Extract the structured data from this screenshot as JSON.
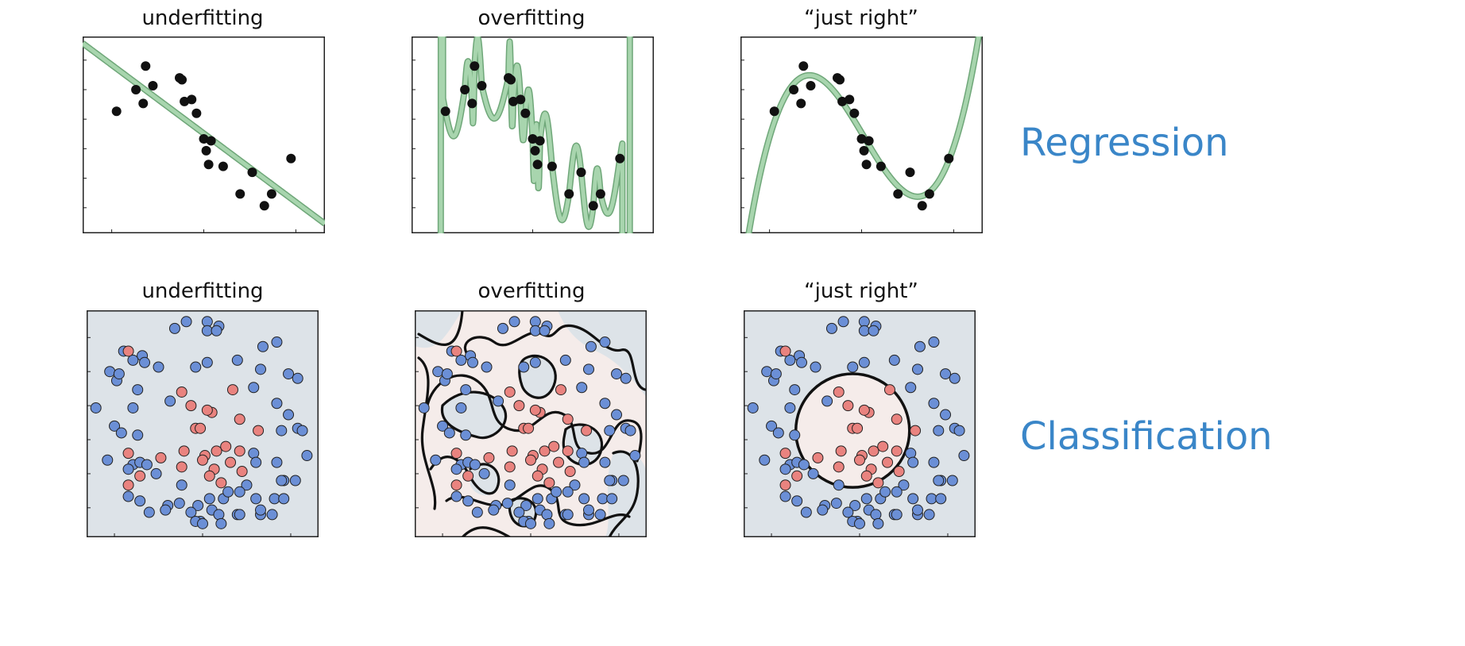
{
  "row_labels": {
    "regression": "Regression",
    "classification": "Classification"
  },
  "colors": {
    "row_label": "#3a86c8",
    "fit_line_fill": "#a8d5ae",
    "fit_line_edge": "#6fa779",
    "point_black": "#111111",
    "class_outer": "#6b8fd6",
    "class_inner": "#e9837f",
    "bg_outer_region": "#dde3e8",
    "bg_inner_region": "#f5ecea",
    "boundary": "#111111"
  },
  "chart_data": [
    {
      "type": "scatter",
      "panel": "regression-underfitting",
      "title": "underfitting",
      "fit": "linear",
      "xlim": [
        0,
        1
      ],
      "ylim": [
        0,
        1
      ],
      "x": [
        0.14,
        0.22,
        0.25,
        0.26,
        0.29,
        0.4,
        0.41,
        0.42,
        0.45,
        0.47,
        0.5,
        0.51,
        0.52,
        0.53,
        0.58,
        0.65,
        0.7,
        0.75,
        0.78,
        0.86
      ],
      "y": [
        0.62,
        0.73,
        0.66,
        0.85,
        0.75,
        0.79,
        0.78,
        0.67,
        0.68,
        0.61,
        0.48,
        0.42,
        0.35,
        0.47,
        0.34,
        0.2,
        0.31,
        0.14,
        0.2,
        0.38
      ]
    },
    {
      "type": "scatter",
      "panel": "regression-overfitting",
      "title": "overfitting",
      "fit": "interpolating polynomial",
      "xlim": [
        0,
        1
      ],
      "ylim": [
        0,
        1
      ],
      "x": [
        0.14,
        0.22,
        0.25,
        0.26,
        0.29,
        0.4,
        0.41,
        0.42,
        0.45,
        0.47,
        0.5,
        0.51,
        0.52,
        0.53,
        0.58,
        0.65,
        0.7,
        0.75,
        0.78,
        0.86
      ],
      "y": [
        0.62,
        0.73,
        0.66,
        0.85,
        0.75,
        0.79,
        0.78,
        0.67,
        0.68,
        0.61,
        0.48,
        0.42,
        0.35,
        0.47,
        0.34,
        0.2,
        0.31,
        0.14,
        0.2,
        0.38
      ]
    },
    {
      "type": "scatter",
      "panel": "regression-just-right",
      "title": "“just right”",
      "fit": "cubic",
      "xlim": [
        0,
        1
      ],
      "ylim": [
        0,
        1
      ],
      "x": [
        0.14,
        0.22,
        0.25,
        0.26,
        0.29,
        0.4,
        0.41,
        0.42,
        0.45,
        0.47,
        0.5,
        0.51,
        0.52,
        0.53,
        0.58,
        0.65,
        0.7,
        0.75,
        0.78,
        0.86
      ],
      "y": [
        0.62,
        0.73,
        0.66,
        0.85,
        0.75,
        0.79,
        0.78,
        0.67,
        0.68,
        0.61,
        0.48,
        0.42,
        0.35,
        0.47,
        0.34,
        0.2,
        0.31,
        0.14,
        0.2,
        0.38
      ]
    },
    {
      "type": "scatter",
      "panel": "classification-underfitting",
      "title": "underfitting",
      "boundary": "none",
      "xlim": [
        0,
        1
      ],
      "ylim": [
        0,
        1
      ]
    },
    {
      "type": "scatter",
      "panel": "classification-overfitting",
      "title": "overfitting",
      "boundary": "wiggly",
      "xlim": [
        0,
        1
      ],
      "ylim": [
        0,
        1
      ]
    },
    {
      "type": "scatter",
      "panel": "classification-just-right",
      "title": "“just right”",
      "boundary": "circle",
      "xlim": [
        0,
        1
      ],
      "ylim": [
        0,
        1
      ]
    }
  ],
  "class_points": {
    "outer": [
      [
        0.38,
        0.92
      ],
      [
        0.43,
        0.95
      ],
      [
        0.52,
        0.95
      ],
      [
        0.57,
        0.93
      ],
      [
        0.52,
        0.91
      ],
      [
        0.56,
        0.91
      ],
      [
        0.76,
        0.84
      ],
      [
        0.82,
        0.86
      ],
      [
        0.24,
        0.8
      ],
      [
        0.25,
        0.77
      ],
      [
        0.31,
        0.75
      ],
      [
        0.47,
        0.75
      ],
      [
        0.52,
        0.77
      ],
      [
        0.65,
        0.78
      ],
      [
        0.16,
        0.82
      ],
      [
        0.2,
        0.78
      ],
      [
        0.1,
        0.73
      ],
      [
        0.13,
        0.69
      ],
      [
        0.14,
        0.72
      ],
      [
        0.22,
        0.65
      ],
      [
        0.36,
        0.6
      ],
      [
        0.72,
        0.66
      ],
      [
        0.75,
        0.74
      ],
      [
        0.87,
        0.72
      ],
      [
        0.91,
        0.7
      ],
      [
        0.04,
        0.57
      ],
      [
        0.2,
        0.57
      ],
      [
        0.82,
        0.59
      ],
      [
        0.87,
        0.54
      ],
      [
        0.12,
        0.49
      ],
      [
        0.15,
        0.46
      ],
      [
        0.22,
        0.45
      ],
      [
        0.84,
        0.47
      ],
      [
        0.91,
        0.48
      ],
      [
        0.93,
        0.47
      ],
      [
        0.09,
        0.34
      ],
      [
        0.2,
        0.32
      ],
      [
        0.23,
        0.33
      ],
      [
        0.26,
        0.32
      ],
      [
        0.72,
        0.37
      ],
      [
        0.73,
        0.33
      ],
      [
        0.82,
        0.33
      ],
      [
        0.95,
        0.36
      ],
      [
        0.18,
        0.3
      ],
      [
        0.3,
        0.28
      ],
      [
        0.85,
        0.25
      ],
      [
        0.41,
        0.23
      ],
      [
        0.69,
        0.23
      ],
      [
        0.9,
        0.25
      ],
      [
        0.84,
        0.25
      ],
      [
        0.18,
        0.18
      ],
      [
        0.23,
        0.16
      ],
      [
        0.35,
        0.14
      ],
      [
        0.4,
        0.15
      ],
      [
        0.48,
        0.14
      ],
      [
        0.53,
        0.17
      ],
      [
        0.59,
        0.17
      ],
      [
        0.61,
        0.2
      ],
      [
        0.66,
        0.2
      ],
      [
        0.73,
        0.17
      ],
      [
        0.81,
        0.17
      ],
      [
        0.85,
        0.17
      ],
      [
        0.27,
        0.11
      ],
      [
        0.34,
        0.12
      ],
      [
        0.45,
        0.11
      ],
      [
        0.49,
        0.07
      ],
      [
        0.54,
        0.12
      ],
      [
        0.57,
        0.1
      ],
      [
        0.65,
        0.1
      ],
      [
        0.75,
        0.1
      ],
      [
        0.8,
        0.1
      ],
      [
        0.47,
        0.07
      ],
      [
        0.5,
        0.06
      ],
      [
        0.58,
        0.06
      ],
      [
        0.66,
        0.1
      ],
      [
        0.75,
        0.12
      ]
    ],
    "inner": [
      [
        0.18,
        0.82
      ],
      [
        0.63,
        0.65
      ],
      [
        0.41,
        0.64
      ],
      [
        0.45,
        0.58
      ],
      [
        0.54,
        0.55
      ],
      [
        0.52,
        0.56
      ],
      [
        0.66,
        0.52
      ],
      [
        0.47,
        0.48
      ],
      [
        0.49,
        0.48
      ],
      [
        0.74,
        0.47
      ],
      [
        0.42,
        0.38
      ],
      [
        0.51,
        0.36
      ],
      [
        0.56,
        0.38
      ],
      [
        0.6,
        0.4
      ],
      [
        0.66,
        0.38
      ],
      [
        0.18,
        0.37
      ],
      [
        0.32,
        0.35
      ],
      [
        0.41,
        0.31
      ],
      [
        0.5,
        0.34
      ],
      [
        0.55,
        0.3
      ],
      [
        0.62,
        0.33
      ],
      [
        0.67,
        0.29
      ],
      [
        0.23,
        0.27
      ],
      [
        0.53,
        0.27
      ],
      [
        0.58,
        0.24
      ],
      [
        0.18,
        0.23
      ]
    ]
  }
}
